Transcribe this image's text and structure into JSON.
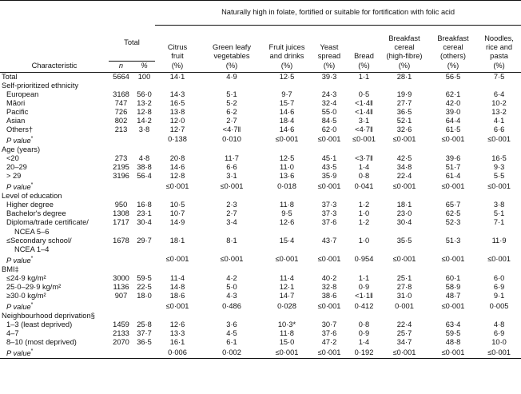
{
  "table": {
    "group_header": "Naturally high in folate, fortified or suitable for fortification with folic acid",
    "total_header": "Total",
    "column_headers": [
      "Citrus\nfruit",
      "Green leafy\nvegetables",
      "Fruit juices\nand drinks",
      "Yeast\nspread",
      "Bread",
      "Breakfast\ncereal\n(high-fibre)",
      "Breakfast\ncereal\n(others)",
      "Noodles,\nrice and\npasta"
    ],
    "sub_headers": [
      "Characteristic",
      "n",
      "%",
      "(%)",
      "(%)",
      "(%)",
      "(%)",
      "(%)",
      "(%)",
      "(%)",
      "(%)"
    ],
    "rows": [
      {
        "type": "data",
        "indent": 0,
        "label": "Total",
        "cells": [
          "5664",
          "100",
          "14·1",
          "4·9",
          "12·5",
          "39·3",
          "1·1",
          "28·1",
          "56·5",
          "7·5"
        ]
      },
      {
        "type": "section",
        "label": "Self-prioritized ethnicity"
      },
      {
        "type": "data",
        "indent": 1,
        "label": "European",
        "cells": [
          "3168",
          "56·0",
          "14·3",
          "5·1",
          "9·7",
          "24·3",
          "0·5",
          "19·9",
          "62·1",
          "6·4"
        ]
      },
      {
        "type": "data",
        "indent": 1,
        "label": "Māori",
        "cells": [
          "747",
          "13·2",
          "16·5",
          "5·2",
          "15·7",
          "32·4",
          "<1·4‖",
          "27·7",
          "42·0",
          "10·2"
        ]
      },
      {
        "type": "data",
        "indent": 1,
        "label": "Pacific",
        "cells": [
          "726",
          "12·8",
          "13·8",
          "6·2",
          "14·6",
          "55·0",
          "<1·4‖",
          "36·5",
          "39·0",
          "13·2"
        ]
      },
      {
        "type": "data",
        "indent": 1,
        "label": "Asian",
        "cells": [
          "802",
          "14·2",
          "12·0",
          "2·7",
          "18·4",
          "84·5",
          "3·1",
          "52·1",
          "64·4",
          "4·1"
        ]
      },
      {
        "type": "data",
        "indent": 1,
        "label": "Others†",
        "cells": [
          "213",
          "3·8",
          "12·7",
          "<4·7‖",
          "14·6",
          "62·0",
          "<4·7‖",
          "32·6",
          "61·5",
          "6·6"
        ]
      },
      {
        "type": "pval",
        "indent": 1,
        "label": "P value",
        "label_suffix": "*",
        "cells": [
          "",
          "",
          "0·138",
          "0·010",
          "≤0·001",
          "≤0·001",
          "≤0·001",
          "≤0·001",
          "≤0·001",
          "≤0·001"
        ]
      },
      {
        "type": "section",
        "label": "Age (years)"
      },
      {
        "type": "data",
        "indent": 1,
        "label": "<20",
        "cells": [
          "273",
          "4·8",
          "20·8",
          "11·7",
          "12·5",
          "45·1",
          "<3·7‖",
          "42·5",
          "39·6",
          "16·5"
        ]
      },
      {
        "type": "data",
        "indent": 1,
        "label": "20–29",
        "cells": [
          "2195",
          "38·8",
          "14·6",
          "6·6",
          "11·0",
          "43·5",
          "1·4",
          "34·8",
          "51·7",
          "9·3"
        ]
      },
      {
        "type": "data",
        "indent": 1,
        "label": "> 29",
        "cells": [
          "3196",
          "56·4",
          "12·8",
          "3·1",
          "13·6",
          "35·9",
          "0·8",
          "22·4",
          "61·4",
          "5·5"
        ]
      },
      {
        "type": "pval",
        "indent": 1,
        "label": "P value",
        "label_suffix": "*",
        "cells": [
          "",
          "",
          "≤0·001",
          "≤0·001",
          "0·018",
          "≤0·001",
          "0·041",
          "≤0·001",
          "≤0·001",
          "≤0·001"
        ]
      },
      {
        "type": "section",
        "label": "Level of education"
      },
      {
        "type": "data",
        "indent": 1,
        "label": "Higher degree",
        "cells": [
          "950",
          "16·8",
          "10·5",
          "2·3",
          "11·8",
          "37·3",
          "1·2",
          "18·1",
          "65·7",
          "3·8"
        ]
      },
      {
        "type": "data",
        "indent": 1,
        "label": "Bachelor's degree",
        "cells": [
          "1308",
          "23·1",
          "10·7",
          "2·7",
          "9·5",
          "37·3",
          "1·0",
          "23·0",
          "62·5",
          "5·1"
        ]
      },
      {
        "type": "data",
        "indent": 1,
        "label": "Diploma/trade certificate/",
        "cells": [
          "1717",
          "30·4",
          "14·9",
          "3·4",
          "12·6",
          "37·6",
          "1·2",
          "30·4",
          "52·3",
          "7·1"
        ]
      },
      {
        "type": "cont",
        "indent": 2,
        "label": "NCEA 5–6"
      },
      {
        "type": "data",
        "indent": 1,
        "label": "≤Secondary school/",
        "cells": [
          "1678",
          "29·7",
          "18·1",
          "8·1",
          "15·4",
          "43·7",
          "1·0",
          "35·5",
          "51·3",
          "11·9"
        ]
      },
      {
        "type": "cont",
        "indent": 2,
        "label": "NCEA 1–4"
      },
      {
        "type": "pval",
        "indent": 1,
        "label": "P value",
        "label_suffix": "*",
        "cells": [
          "",
          "",
          "≤0·001",
          "≤0·001",
          "≤0·001",
          "≤0·001",
          "0·954",
          "≤0·001",
          "≤0·001",
          "≤0·001"
        ]
      },
      {
        "type": "section",
        "label": "BMI‡"
      },
      {
        "type": "data",
        "indent": 1,
        "label": "≤24·9 kg/m²",
        "cells": [
          "3000",
          "59·5",
          "11·4",
          "4·2",
          "11·4",
          "40·2",
          "1·1",
          "25·1",
          "60·1",
          "6·0"
        ]
      },
      {
        "type": "data",
        "indent": 1,
        "label": "25·0–29·9 kg/m²",
        "cells": [
          "1136",
          "22·5",
          "14·8",
          "5·0",
          "12·1",
          "32·8",
          "0·9",
          "27·8",
          "58·9",
          "6·9"
        ]
      },
      {
        "type": "data",
        "indent": 1,
        "label": "≥30·0 kg/m²",
        "cells": [
          "907",
          "18·0",
          "18·6",
          "4·3",
          "14·7",
          "38·6",
          "<1·1‖",
          "31·0",
          "48·7",
          "9·1"
        ]
      },
      {
        "type": "pval",
        "indent": 1,
        "label": "P value",
        "label_suffix": "*",
        "cells": [
          "",
          "",
          "≤0·001",
          "0·486",
          "0·028",
          "≤0·001",
          "0·412",
          "0·001",
          "≤0·001",
          "0·005"
        ]
      },
      {
        "type": "section",
        "label": "Neighbourhood deprivation§"
      },
      {
        "type": "data",
        "indent": 1,
        "label": "1–3 (least deprived)",
        "cells": [
          "1459",
          "25·8",
          "12·6",
          "3·6",
          "10·3*",
          "30·7",
          "0·8",
          "22·4",
          "63·4",
          "4·8"
        ]
      },
      {
        "type": "data",
        "indent": 1,
        "label": "4–7",
        "cells": [
          "2133",
          "37·7",
          "13·3",
          "4·5",
          "11·8",
          "37·6",
          "0·9",
          "25·7",
          "59·5",
          "6·9"
        ]
      },
      {
        "type": "data",
        "indent": 1,
        "label": "8–10 (most deprived)",
        "cells": [
          "2070",
          "36·5",
          "16·1",
          "6·1",
          "15·0",
          "47·2",
          "1·4",
          "34·7",
          "48·8",
          "10·0"
        ]
      },
      {
        "type": "pval",
        "indent": 1,
        "label": "P value",
        "label_suffix": "*",
        "last": true,
        "cells": [
          "",
          "",
          "0·006",
          "0·002",
          "≤0·001",
          "≤0·001",
          "0·192",
          "≤0·001",
          "≤0·001",
          "≤0·001"
        ]
      }
    ]
  }
}
